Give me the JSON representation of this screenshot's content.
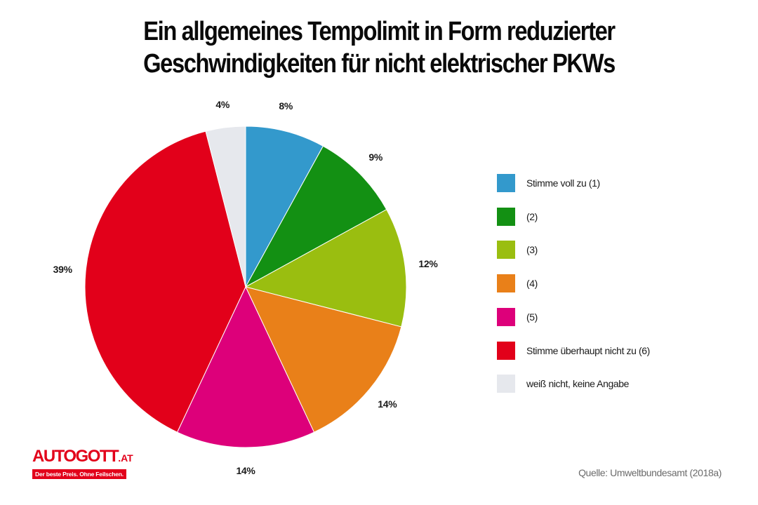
{
  "chart_data": {
    "type": "pie",
    "title": "Ein allgemeines Tempolimit in Form reduzierter Geschwindigkeiten für nicht elektrischer PKWs",
    "title_lines": [
      "Ein allgemeines Tempolimit in Form reduzierter",
      "Geschwindigkeiten für nicht elektrischer PKWs"
    ],
    "categories": [
      "Stimme voll zu (1)",
      "(2)",
      "(3)",
      "(4)",
      "(5)",
      "Stimme überhaupt nicht  zu (6)",
      "weiß nicht, keine Angabe"
    ],
    "values": [
      8,
      9,
      12,
      14,
      14,
      39,
      4
    ],
    "value_labels": [
      "8%",
      "9%",
      "12%",
      "14%",
      "14%",
      "39%",
      "4%"
    ],
    "colors": [
      "#3399cc",
      "#139013",
      "#9abe10",
      "#e98019",
      "#dd007a",
      "#e2001a",
      "#e6e8ed"
    ],
    "start_angle": "12 o'clock",
    "direction": "clockwise",
    "legend_position": "right",
    "xlabel": "",
    "ylabel": ""
  },
  "legend": {
    "items": [
      {
        "label": "Stimme voll zu (1)",
        "color": "#3399cc"
      },
      {
        "label": "(2)",
        "color": "#139013"
      },
      {
        "label": "(3)",
        "color": "#9abe10"
      },
      {
        "label": "(4)",
        "color": "#e98019"
      },
      {
        "label": "(5)",
        "color": "#dd007a"
      },
      {
        "label": "Stimme überhaupt nicht  zu (6)",
        "color": "#e2001a"
      },
      {
        "label": "weiß nicht, keine Angabe",
        "color": "#e6e8ed"
      }
    ]
  },
  "logo": {
    "name": "AUTOGOTT",
    "tld": ".AT",
    "tagline": "Der beste Preis. Ohne Feilschen.",
    "color": "#e2001a"
  },
  "source": "Quelle: Umweltbundesamt (2018a)"
}
